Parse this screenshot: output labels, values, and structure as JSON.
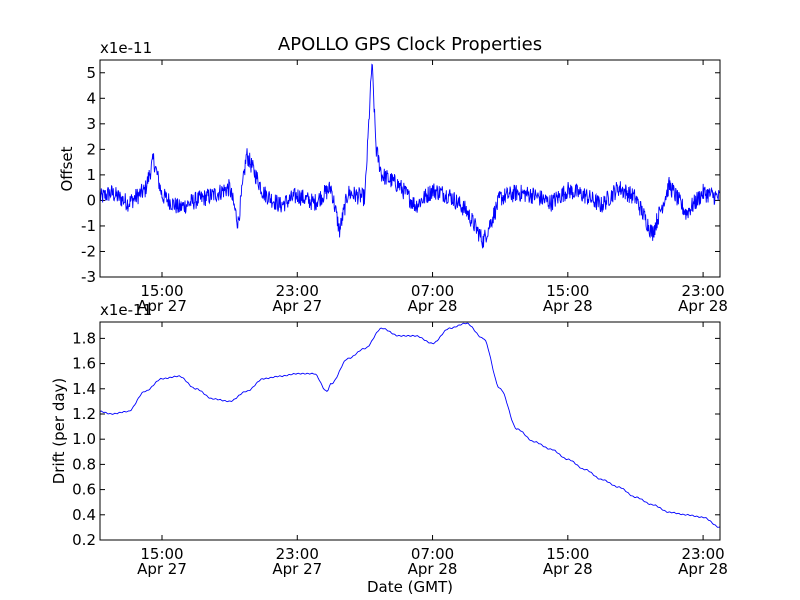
{
  "chart_data": [
    {
      "type": "line",
      "title": "APOLLO GPS Clock Properties",
      "scale_label": "x1e-11",
      "ylabel": "Offset",
      "xlabel": "",
      "ylim": [
        -3,
        5.5
      ],
      "yticks": [
        -3,
        -2,
        -1,
        0,
        1,
        2,
        3,
        4,
        5
      ],
      "ytick_labels": [
        "-3",
        "-2",
        "-1",
        "0",
        "1",
        "2",
        "3",
        "4",
        "5"
      ],
      "xlim": [
        "2012-04-27T11:20",
        "2012-04-29T00:00"
      ],
      "xticks": [
        {
          "time": "2012-04-27T15:00",
          "label1": "15:00",
          "label2": "Apr 27"
        },
        {
          "time": "2012-04-27T23:00",
          "label1": "23:00",
          "label2": "Apr 27"
        },
        {
          "time": "2012-04-28T07:00",
          "label1": "07:00",
          "label2": "Apr 28"
        },
        {
          "time": "2012-04-28T15:00",
          "label1": "15:00",
          "label2": "Apr 28"
        },
        {
          "time": "2012-04-28T23:00",
          "label1": "23:00",
          "label2": "Apr 28"
        }
      ],
      "grid": false,
      "series": [
        {
          "color": "#0000ff",
          "x": [
            "2012-04-27T11:20",
            "2012-04-27T12:00",
            "2012-04-27T13:00",
            "2012-04-27T14:00",
            "2012-04-27T14:30",
            "2012-04-27T15:00",
            "2012-04-27T16:00",
            "2012-04-27T17:00",
            "2012-04-27T18:00",
            "2012-04-27T19:00",
            "2012-04-27T19:30",
            "2012-04-27T20:00",
            "2012-04-27T21:00",
            "2012-04-27T22:00",
            "2012-04-27T23:00",
            "2012-04-28T00:00",
            "2012-04-28T01:00",
            "2012-04-28T01:30",
            "2012-04-28T02:00",
            "2012-04-28T03:00",
            "2012-04-28T03:25",
            "2012-04-28T03:40",
            "2012-04-28T04:00",
            "2012-04-28T05:00",
            "2012-04-28T06:00",
            "2012-04-28T07:00",
            "2012-04-28T08:00",
            "2012-04-28T09:00",
            "2012-04-28T10:00",
            "2012-04-28T11:00",
            "2012-04-28T12:00",
            "2012-04-28T13:00",
            "2012-04-28T14:00",
            "2012-04-28T15:00",
            "2012-04-28T16:00",
            "2012-04-28T17:00",
            "2012-04-28T18:00",
            "2012-04-28T19:00",
            "2012-04-28T20:00",
            "2012-04-28T21:00",
            "2012-04-28T22:00",
            "2012-04-28T23:00",
            "2012-04-29T00:00"
          ],
          "y": [
            0.1,
            0.3,
            -0.1,
            0.4,
            1.6,
            0.2,
            -0.3,
            0.0,
            0.2,
            0.5,
            -0.9,
            1.8,
            0.3,
            -0.2,
            0.2,
            -0.1,
            0.5,
            -1.2,
            0.3,
            0.1,
            5.4,
            2.0,
            1.0,
            0.6,
            -0.2,
            0.4,
            0.2,
            -0.4,
            -1.6,
            0.1,
            0.3,
            0.2,
            -0.1,
            0.4,
            0.2,
            -0.2,
            0.5,
            0.1,
            -1.3,
            0.6,
            -0.5,
            0.3,
            0.1
          ]
        }
      ]
    },
    {
      "type": "line",
      "title": "",
      "scale_label": "x1e-11",
      "ylabel": "Drift (per day)",
      "xlabel": "Date (GMT)",
      "ylim": [
        0.2,
        1.93
      ],
      "yticks": [
        0.2,
        0.4,
        0.6,
        0.8,
        1.0,
        1.2,
        1.4,
        1.6,
        1.8
      ],
      "ytick_labels": [
        "0.2",
        "0.4",
        "0.6",
        "0.8",
        "1.0",
        "1.2",
        "1.4",
        "1.6",
        "1.8"
      ],
      "xlim": [
        "2012-04-27T11:20",
        "2012-04-29T00:00"
      ],
      "xticks": [
        {
          "time": "2012-04-27T15:00",
          "label1": "15:00",
          "label2": "Apr 27"
        },
        {
          "time": "2012-04-27T23:00",
          "label1": "23:00",
          "label2": "Apr 27"
        },
        {
          "time": "2012-04-28T07:00",
          "label1": "07:00",
          "label2": "Apr 28"
        },
        {
          "time": "2012-04-28T15:00",
          "label1": "15:00",
          "label2": "Apr 28"
        },
        {
          "time": "2012-04-28T23:00",
          "label1": "23:00",
          "label2": "Apr 28"
        }
      ],
      "grid": false,
      "series": [
        {
          "color": "#0000ff",
          "x": [
            "2012-04-27T11:20",
            "2012-04-27T12:00",
            "2012-04-27T13:00",
            "2012-04-27T14:00",
            "2012-04-27T15:00",
            "2012-04-27T16:00",
            "2012-04-27T17:00",
            "2012-04-27T18:00",
            "2012-04-27T19:00",
            "2012-04-27T20:00",
            "2012-04-27T21:00",
            "2012-04-27T22:00",
            "2012-04-27T23:00",
            "2012-04-28T00:00",
            "2012-04-28T00:45",
            "2012-04-28T01:00",
            "2012-04-28T02:00",
            "2012-04-28T03:00",
            "2012-04-28T04:00",
            "2012-04-28T05:00",
            "2012-04-28T06:00",
            "2012-04-28T07:00",
            "2012-04-28T08:00",
            "2012-04-28T09:00",
            "2012-04-28T10:00",
            "2012-04-28T11:00",
            "2012-04-28T12:00",
            "2012-04-28T13:00",
            "2012-04-28T14:00",
            "2012-04-28T15:00",
            "2012-04-28T16:00",
            "2012-04-28T17:00",
            "2012-04-28T18:00",
            "2012-04-28T19:00",
            "2012-04-28T20:00",
            "2012-04-28T21:00",
            "2012-04-28T22:00",
            "2012-04-28T23:00",
            "2012-04-29T00:00"
          ],
          "y": [
            1.22,
            1.2,
            1.22,
            1.38,
            1.48,
            1.5,
            1.4,
            1.32,
            1.3,
            1.38,
            1.48,
            1.5,
            1.52,
            1.52,
            1.38,
            1.44,
            1.64,
            1.72,
            1.88,
            1.82,
            1.82,
            1.76,
            1.88,
            1.92,
            1.8,
            1.4,
            1.08,
            0.98,
            0.92,
            0.84,
            0.76,
            0.68,
            0.62,
            0.54,
            0.48,
            0.42,
            0.4,
            0.38,
            0.3
          ]
        }
      ]
    }
  ]
}
